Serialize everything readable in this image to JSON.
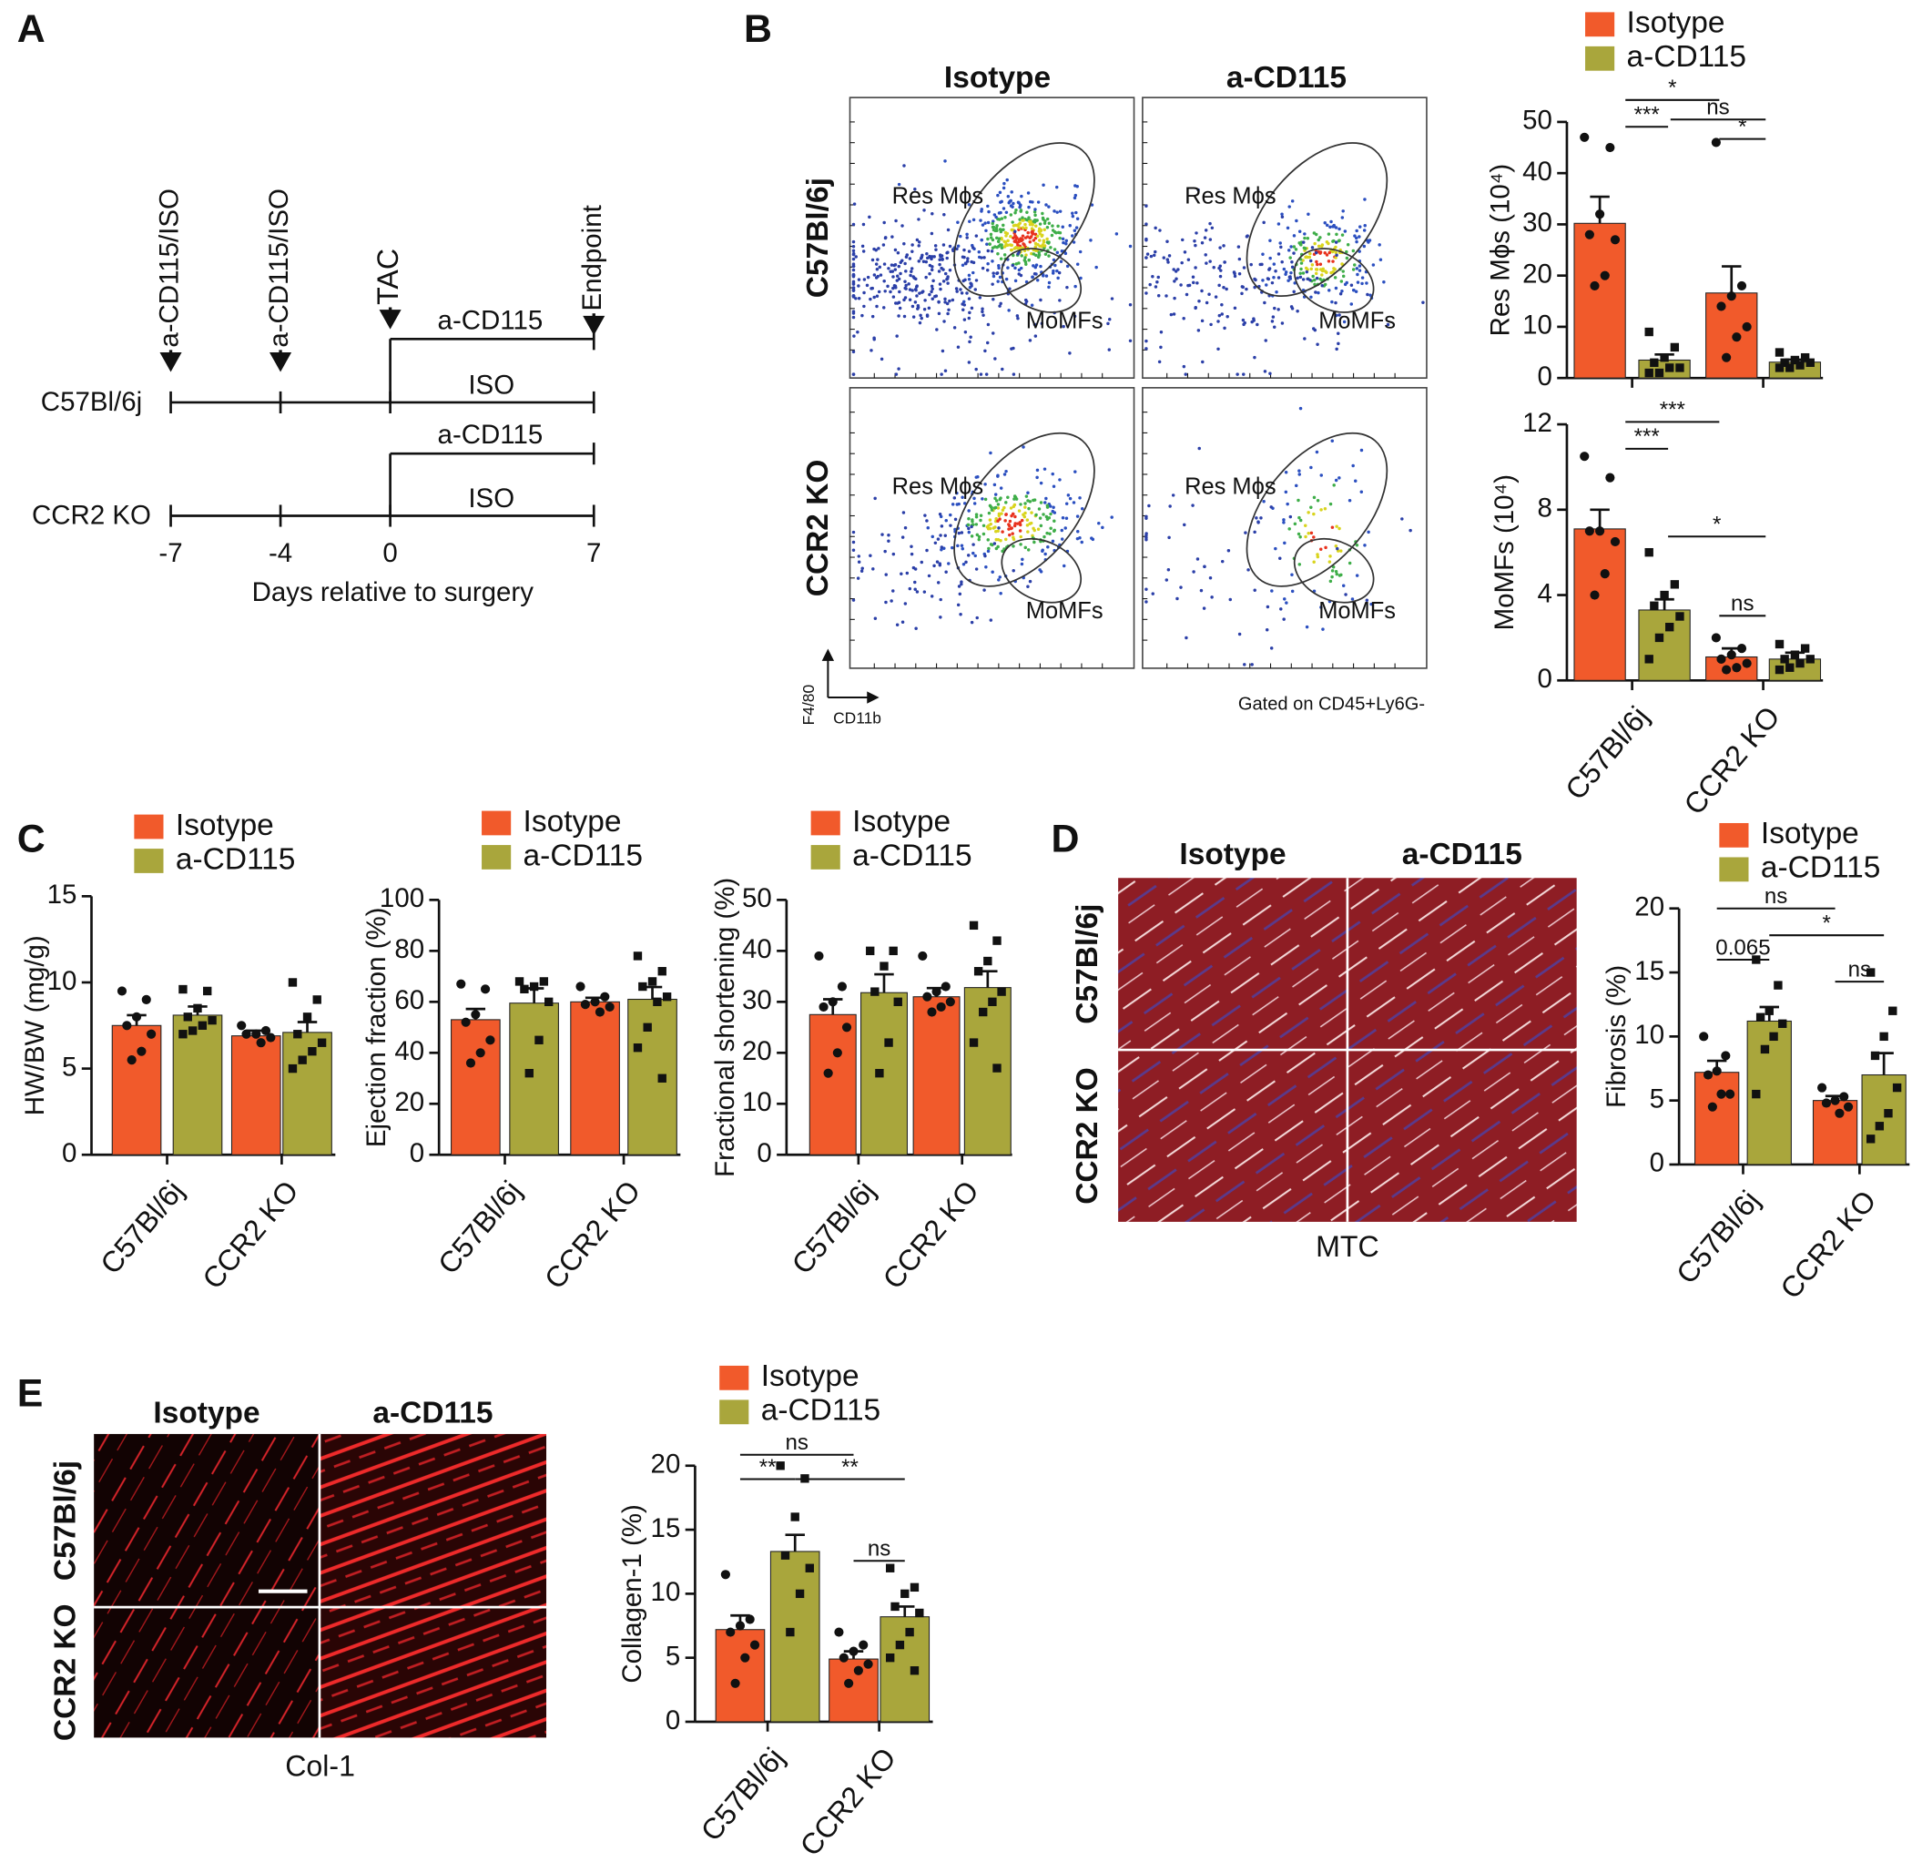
{
  "panel_labels": [
    "A",
    "B",
    "C",
    "D",
    "E"
  ],
  "panel_a": {
    "treatments": [
      "a-CD115/ISO",
      "a-CD115/ISO"
    ],
    "surgery": "TAC",
    "endpoint": "Endpoint",
    "strains": [
      {
        "name": "C57Bl/6j",
        "upper_arm": "a-CD115",
        "lower_arm": "ISO"
      },
      {
        "name": "CCR2 KO",
        "upper_arm": "a-CD115",
        "lower_arm": "ISO"
      }
    ],
    "day_ticks": [
      -7,
      -4,
      0,
      7
    ],
    "xlabel": "Days relative to surgery"
  },
  "panel_b_flow": {
    "columns": [
      "Isotype",
      "a-CD115"
    ],
    "rows": [
      "C57Bl/6j",
      "CCR2 KO"
    ],
    "gates": [
      "Res Mϕs",
      "MoMFs"
    ],
    "y_axis": "F4/80",
    "x_axis": "CD11b",
    "note": "Gated on CD45+Ly6G-"
  },
  "panel_d_images": {
    "columns": [
      "Isotype",
      "a-CD115"
    ],
    "rows": [
      "C57Bl/6j",
      "CCR2 KO"
    ],
    "stain": "MTC"
  },
  "panel_e_images": {
    "columns": [
      "Isotype",
      "a-CD115"
    ],
    "rows": [
      "C57Bl/6j",
      "CCR2 KO"
    ],
    "stain": "Col-1"
  },
  "chart_data": [
    {
      "type": "bar",
      "ylabel": "Res Mϕs (10⁴)",
      "categories": [
        null,
        null
      ],
      "legend": true,
      "ylim": [
        0,
        50
      ],
      "yticks": [
        0,
        10,
        20,
        30,
        40,
        50
      ],
      "series": [
        {
          "name": "Isotype",
          "color": "#f15a2b",
          "marker": "circle",
          "values": [
            30.2,
            16.6
          ],
          "errors": [
            5.2,
            5.2
          ],
          "points": [
            [
              47,
              45,
              32,
              28,
              27,
              20,
              18
            ],
            [
              46,
              18,
              16,
              14,
              10,
              8,
              4
            ]
          ]
        },
        {
          "name": "a-CD115",
          "color": "#a9a63c",
          "marker": "square",
          "values": [
            3.5,
            3.1
          ],
          "errors": [
            1.1,
            0.5
          ],
          "points": [
            [
              9,
              6,
              4,
              3,
              2,
              2,
              1,
              1
            ],
            [
              5,
              4,
              3.5,
              3,
              3,
              2.5,
              2,
              2
            ]
          ]
        }
      ],
      "annotations": [
        "*",
        "***",
        "ns",
        "*"
      ]
    },
    {
      "type": "bar",
      "ylabel": "MoMFs (10⁴)",
      "categories": [
        "C57Bl/6j",
        "CCR2 KO"
      ],
      "legend": false,
      "ylim": [
        0,
        12
      ],
      "yticks": [
        0,
        4,
        8,
        12
      ],
      "series": [
        {
          "name": "Isotype",
          "color": "#f15a2b",
          "marker": "circle",
          "values": [
            7.1,
            1.1
          ],
          "errors": [
            0.9,
            0.4
          ],
          "points": [
            [
              10.5,
              9.5,
              7,
              7,
              6.5,
              5,
              4
            ],
            [
              2,
              1.5,
              1.2,
              1,
              0.8,
              0.6,
              0.5
            ]
          ]
        },
        {
          "name": "a-CD115",
          "color": "#a9a63c",
          "marker": "square",
          "values": [
            3.3,
            1.0
          ],
          "errors": [
            0.5,
            0.3
          ],
          "points": [
            [
              6,
              4.5,
              4,
              3.5,
              3,
              2.5,
              2,
              1
            ],
            [
              1.7,
              1.5,
              1.2,
              1,
              1,
              0.8,
              0.6,
              0.5
            ]
          ]
        }
      ],
      "annotations": [
        "***",
        "***",
        "*",
        "ns"
      ]
    },
    {
      "type": "bar",
      "ylabel": "HW/BW (mg/g)",
      "categories": [
        "C57Bl/6j",
        "CCR2 KO"
      ],
      "legend": true,
      "ylim": [
        0,
        15
      ],
      "yticks": [
        0,
        5,
        10,
        15
      ],
      "series": [
        {
          "name": "Isotype",
          "color": "#f15a2b",
          "marker": "circle",
          "values": [
            7.5,
            6.9
          ],
          "errors": [
            0.6,
            0.3
          ],
          "points": [
            [
              9.5,
              9,
              8,
              7.5,
              7,
              6,
              5.5
            ],
            [
              7.5,
              7.2,
              7,
              7,
              6.8,
              6.5
            ]
          ]
        },
        {
          "name": "a-CD115",
          "color": "#a9a63c",
          "marker": "square",
          "values": [
            8.1,
            7.1
          ],
          "errors": [
            0.5,
            0.6
          ],
          "points": [
            [
              9.6,
              9.5,
              8.5,
              8,
              7.8,
              7.5,
              7.2,
              7
            ],
            [
              10,
              9,
              8,
              7,
              6.5,
              6,
              5.5,
              5
            ]
          ]
        }
      ]
    },
    {
      "type": "bar",
      "ylabel": "Ejection fraction (%)",
      "categories": [
        "C57Bl/6j",
        "CCR2 KO"
      ],
      "legend": true,
      "ylim": [
        0,
        100
      ],
      "yticks": [
        0,
        20,
        40,
        60,
        80,
        100
      ],
      "series": [
        {
          "name": "Isotype",
          "color": "#f15a2b",
          "marker": "circle",
          "values": [
            53,
            60
          ],
          "errors": [
            4.2,
            1.6
          ],
          "points": [
            [
              67,
              65,
              55,
              52,
              45,
              40,
              36
            ],
            [
              66,
              62,
              60,
              59,
              58,
              56
            ]
          ]
        },
        {
          "name": "a-CD115",
          "color": "#a9a63c",
          "marker": "square",
          "values": [
            59.5,
            61
          ],
          "errors": [
            5.8,
            4.8
          ],
          "points": [
            [
              68,
              68,
              66,
              65,
              60,
              45,
              32
            ],
            [
              78,
              72,
              68,
              66,
              62,
              60,
              50,
              42,
              30
            ]
          ]
        }
      ]
    },
    {
      "type": "bar",
      "ylabel": "Fractional shortening (%)",
      "categories": [
        "C57Bl/6j",
        "CCR2 KO"
      ],
      "legend": true,
      "ylim": [
        0,
        50
      ],
      "yticks": [
        0,
        10,
        20,
        30,
        40,
        50
      ],
      "series": [
        {
          "name": "Isotype",
          "color": "#f15a2b",
          "marker": "circle",
          "values": [
            27.5,
            31
          ],
          "errors": [
            3,
            1.7
          ],
          "points": [
            [
              39,
              33,
              30,
              29,
              25,
              20,
              16
            ],
            [
              39,
              33,
              32,
              31,
              30,
              29,
              28
            ]
          ]
        },
        {
          "name": "a-CD115",
          "color": "#a9a63c",
          "marker": "square",
          "values": [
            31.8,
            32.8
          ],
          "errors": [
            3.6,
            3.2
          ],
          "points": [
            [
              40,
              40,
              37,
              32,
              30,
              22,
              16
            ],
            [
              45,
              42,
              38,
              36,
              32,
              30,
              28,
              22,
              17
            ]
          ]
        }
      ]
    },
    {
      "type": "bar",
      "ylabel": "Fibrosis (%)",
      "categories": [
        "C57Bl/6j",
        "CCR2 KO"
      ],
      "legend": true,
      "ylim": [
        0,
        20
      ],
      "yticks": [
        0,
        5,
        10,
        15,
        20
      ],
      "series": [
        {
          "name": "Isotype",
          "color": "#f15a2b",
          "marker": "circle",
          "values": [
            7.2,
            5
          ],
          "errors": [
            0.9,
            0.35
          ],
          "points": [
            [
              10,
              8.5,
              7.3,
              7,
              5.5,
              5.5,
              4.5
            ],
            [
              6,
              5.3,
              5,
              4.8,
              4.5,
              4
            ]
          ]
        },
        {
          "name": "a-CD115",
          "color": "#a9a63c",
          "marker": "square",
          "values": [
            11.2,
            7
          ],
          "errors": [
            1.1,
            1.7
          ],
          "points": [
            [
              16,
              14,
              12,
              11.5,
              11,
              10,
              9,
              5.5
            ],
            [
              15,
              12,
              10,
              8.5,
              6,
              4,
              3,
              2
            ]
          ]
        }
      ],
      "annotations": [
        "ns",
        "0.065",
        "*",
        "ns"
      ]
    },
    {
      "type": "bar",
      "ylabel": "Collagen-1 (%)",
      "categories": [
        "C57Bl/6j",
        "CCR2 KO"
      ],
      "legend": true,
      "ylim": [
        0,
        20
      ],
      "yticks": [
        0,
        5,
        10,
        15,
        20
      ],
      "series": [
        {
          "name": "Isotype",
          "color": "#f15a2b",
          "marker": "circle",
          "values": [
            7.2,
            4.9
          ],
          "errors": [
            1.1,
            0.6
          ],
          "points": [
            [
              11.5,
              8,
              7.5,
              7,
              6,
              5,
              3
            ],
            [
              7,
              6,
              5.5,
              5,
              4.5,
              4,
              3
            ]
          ]
        },
        {
          "name": "a-CD115",
          "color": "#a9a63c",
          "marker": "square",
          "values": [
            13.3,
            8.2
          ],
          "errors": [
            1.3,
            0.8
          ],
          "points": [
            [
              20,
              19,
              16,
              13,
              12,
              10,
              7
            ],
            [
              12,
              10.5,
              10,
              9,
              8.5,
              7,
              6,
              5,
              4
            ]
          ]
        }
      ],
      "annotations": [
        "ns",
        "**",
        "**",
        "ns"
      ]
    }
  ]
}
